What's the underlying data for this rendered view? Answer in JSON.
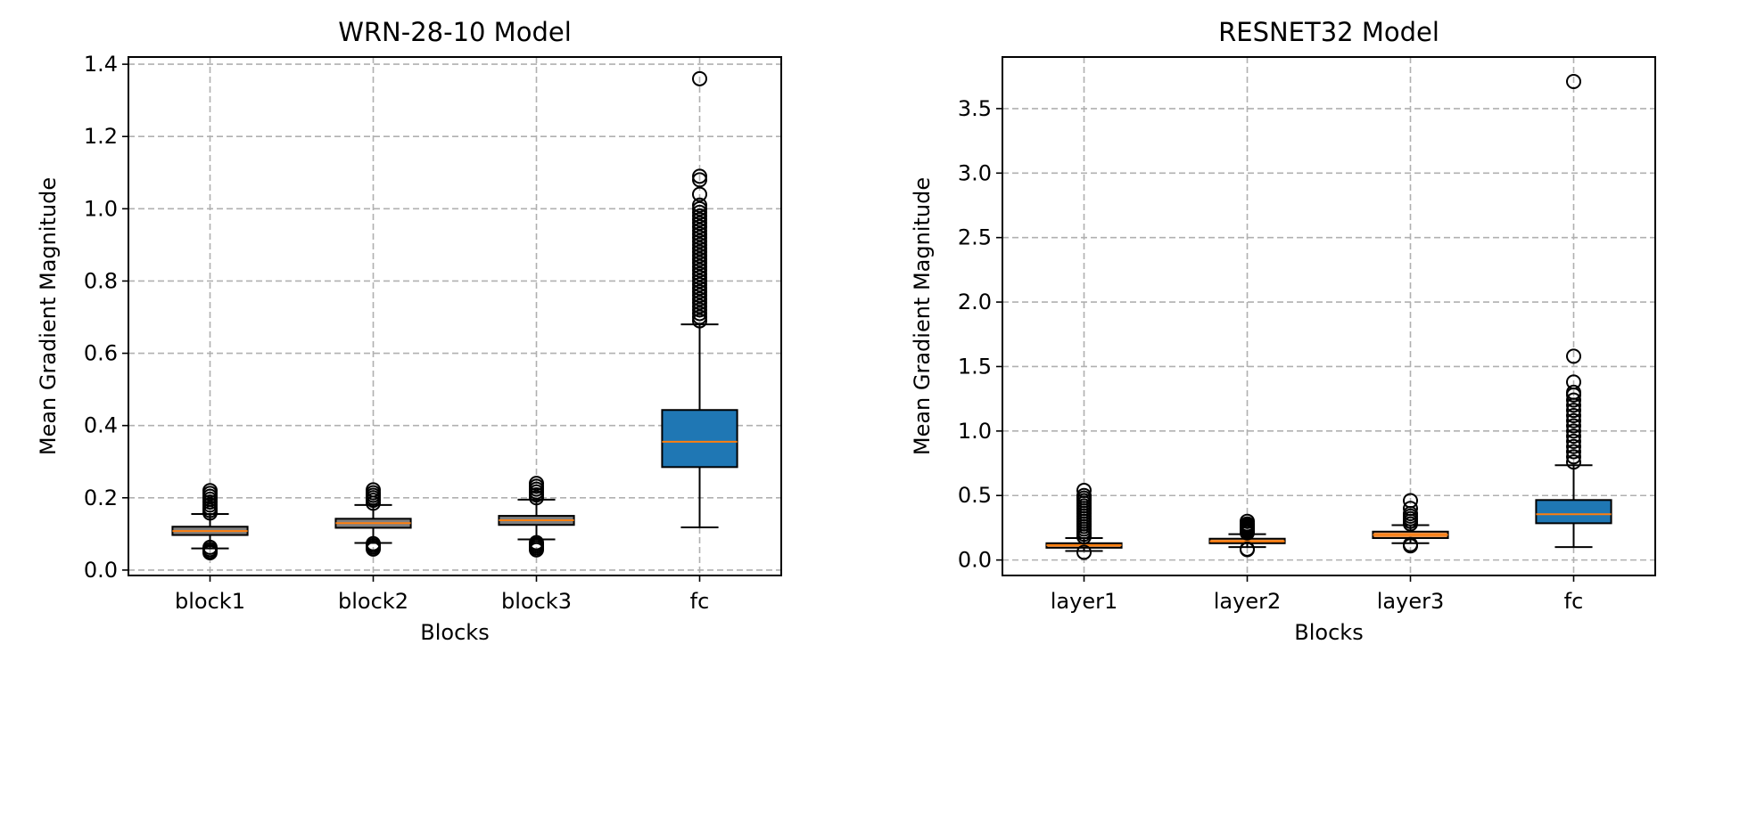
{
  "chart_data": [
    {
      "type": "box",
      "title": "WRN-28-10 Model",
      "xlabel": "Blocks",
      "ylabel": "Mean Gradient Magnitude",
      "ylim": [
        -0.015,
        1.42
      ],
      "yticks": [
        0.0,
        0.2,
        0.4,
        0.6,
        0.8,
        1.0,
        1.2,
        1.4
      ],
      "ytick_labels": [
        "0.0",
        "0.2",
        "0.4",
        "0.6",
        "0.8",
        "1.0",
        "1.2",
        "1.4"
      ],
      "grid": true,
      "categories": [
        "block1",
        "block2",
        "block3",
        "fc"
      ],
      "boxes": [
        {
          "name": "block1",
          "whislo": 0.06,
          "q1": 0.097,
          "med": 0.108,
          "q3": 0.12,
          "whishi": 0.155,
          "color": "#7f7f7f",
          "fliers": [
            0.048,
            0.052,
            0.057,
            0.063,
            0.158,
            0.165,
            0.172,
            0.18,
            0.188,
            0.196,
            0.204,
            0.212,
            0.22
          ]
        },
        {
          "name": "block2",
          "whislo": 0.075,
          "q1": 0.117,
          "med": 0.13,
          "q3": 0.142,
          "whishi": 0.18,
          "color": "#7f7f7f",
          "fliers": [
            0.058,
            0.063,
            0.068,
            0.073,
            0.185,
            0.193,
            0.2,
            0.207,
            0.214,
            0.222
          ]
        },
        {
          "name": "block3",
          "whislo": 0.085,
          "q1": 0.125,
          "med": 0.138,
          "q3": 0.15,
          "whishi": 0.195,
          "color": "#7f7f7f",
          "fliers": [
            0.056,
            0.061,
            0.066,
            0.071,
            0.076,
            0.2,
            0.208,
            0.216,
            0.224,
            0.232,
            0.24
          ]
        },
        {
          "name": "fc",
          "whislo": 0.118,
          "q1": 0.285,
          "med": 0.355,
          "q3": 0.443,
          "whishi": 0.68,
          "color": "#1f77b4",
          "fliers": [
            0.69,
            0.7,
            0.71,
            0.72,
            0.73,
            0.74,
            0.75,
            0.76,
            0.77,
            0.78,
            0.79,
            0.8,
            0.81,
            0.82,
            0.83,
            0.84,
            0.85,
            0.86,
            0.87,
            0.88,
            0.89,
            0.9,
            0.91,
            0.92,
            0.93,
            0.94,
            0.95,
            0.96,
            0.97,
            0.98,
            0.99,
            1.0,
            1.01,
            1.04,
            1.08,
            1.09,
            1.36
          ]
        }
      ]
    },
    {
      "type": "box",
      "title": "RESNET32 Model",
      "xlabel": "Blocks",
      "ylabel": "Mean Gradient Magnitude",
      "ylim": [
        -0.12,
        3.9
      ],
      "yticks": [
        0.0,
        0.5,
        1.0,
        1.5,
        2.0,
        2.5,
        3.0,
        3.5
      ],
      "ytick_labels": [
        "0.0",
        "0.5",
        "1.0",
        "1.5",
        "2.0",
        "2.5",
        "3.0",
        "3.5"
      ],
      "grid": true,
      "categories": [
        "layer1",
        "layer2",
        "layer3",
        "fc"
      ],
      "boxes": [
        {
          "name": "layer1",
          "whislo": 0.07,
          "q1": 0.095,
          "med": 0.115,
          "q3": 0.13,
          "whishi": 0.17,
          "color": "#e8914a",
          "fliers": [
            0.06,
            0.18,
            0.2,
            0.22,
            0.24,
            0.26,
            0.28,
            0.3,
            0.32,
            0.34,
            0.36,
            0.38,
            0.4,
            0.42,
            0.44,
            0.46,
            0.48,
            0.5,
            0.54
          ]
        },
        {
          "name": "layer2",
          "whislo": 0.1,
          "q1": 0.13,
          "med": 0.145,
          "q3": 0.165,
          "whishi": 0.2,
          "color": "#e8914a",
          "fliers": [
            0.08,
            0.085,
            0.21,
            0.22,
            0.23,
            0.24,
            0.25,
            0.26,
            0.27,
            0.28,
            0.3
          ]
        },
        {
          "name": "layer3",
          "whislo": 0.13,
          "q1": 0.17,
          "med": 0.195,
          "q3": 0.22,
          "whishi": 0.27,
          "color": "#e8914a",
          "fliers": [
            0.11,
            0.12,
            0.28,
            0.3,
            0.32,
            0.34,
            0.36,
            0.4,
            0.46
          ]
        },
        {
          "name": "fc",
          "whislo": 0.1,
          "q1": 0.285,
          "med": 0.355,
          "q3": 0.465,
          "whishi": 0.735,
          "color": "#1f77b4",
          "fliers": [
            0.76,
            0.8,
            0.84,
            0.88,
            0.92,
            0.96,
            1.0,
            1.04,
            1.08,
            1.12,
            1.16,
            1.2,
            1.24,
            1.28,
            1.3,
            1.38,
            1.58,
            3.71
          ]
        }
      ]
    }
  ]
}
